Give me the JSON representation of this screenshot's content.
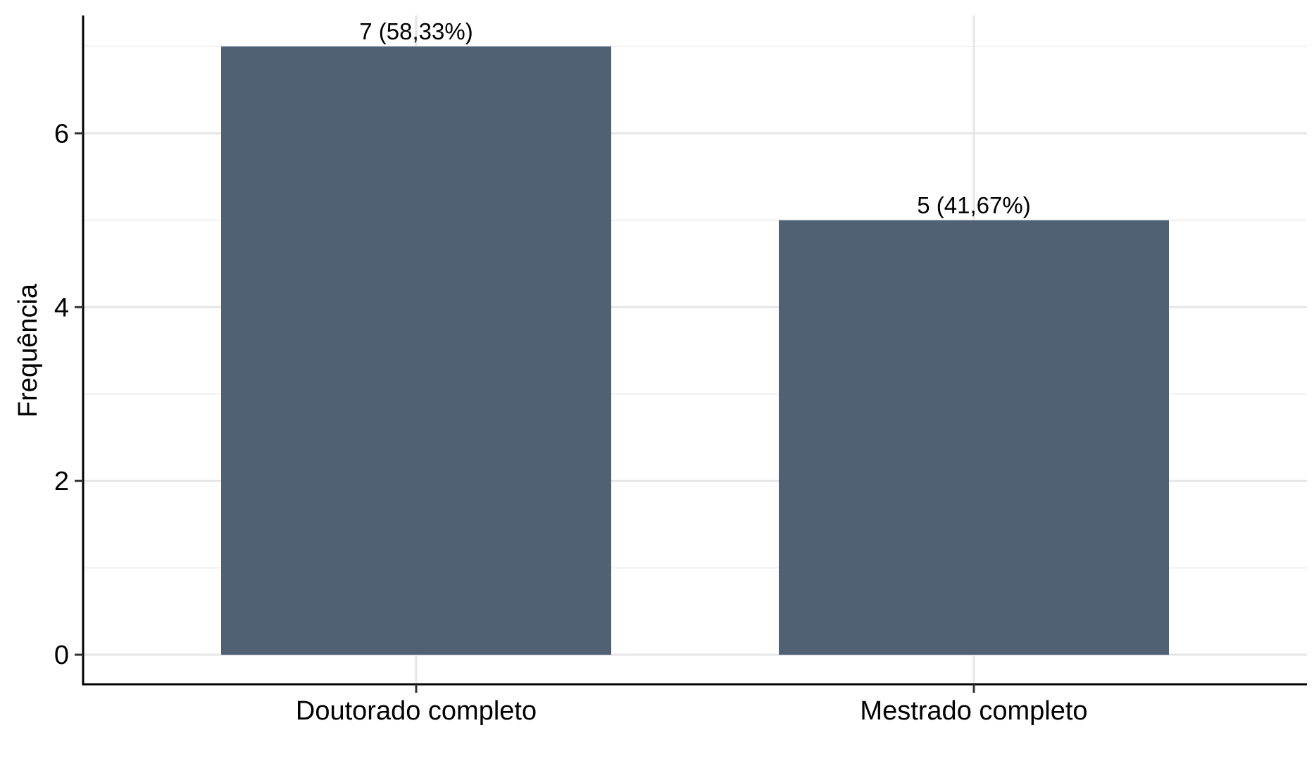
{
  "chart_data": {
    "type": "bar",
    "categories": [
      "Doutorado completo",
      "Mestrado completo"
    ],
    "values": [
      7,
      5
    ],
    "data_labels": [
      "7 (58,33%)",
      "5 (41,67%)"
    ],
    "title": "",
    "xlabel": "",
    "ylabel": "Frequência",
    "ylim": [
      0,
      7.35
    ],
    "yticks": [
      0,
      2,
      4,
      6
    ],
    "grid": true,
    "colors": {
      "bar": "#506176",
      "grid": "#e6e6e6",
      "axis": "#000000"
    }
  }
}
